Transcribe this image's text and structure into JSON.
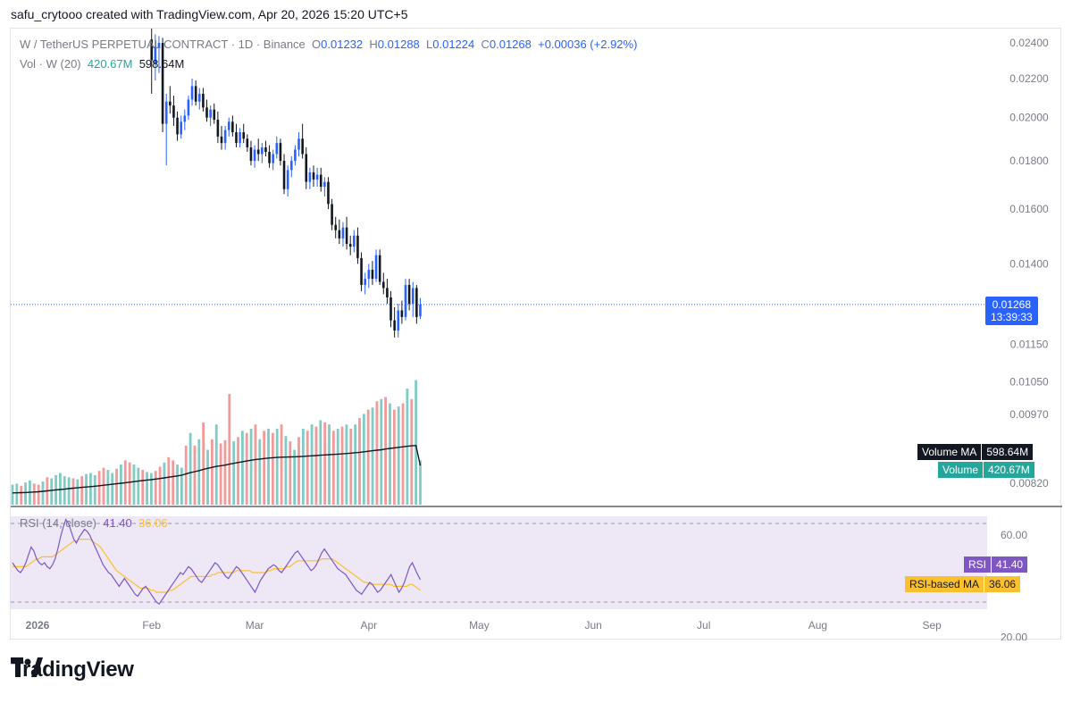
{
  "credit": "safu_crytooo created with TradingView.com, Apr 20, 2026 15:20 UTC+5",
  "legend": {
    "symbol": "W / TetherUS PERPETUAL CONTRACT · 1D · Binance",
    "o_label": "O",
    "o": "0.01232",
    "h_label": "H",
    "h": "0.01288",
    "l_label": "L",
    "l": "0.01224",
    "c_label": "C",
    "c": "0.01268",
    "change": "+0.00036 (+2.92%)",
    "vol_label": "Vol · W (20)",
    "vol_value": "420.67M",
    "vol_ma_value": "598.64M",
    "rsi_label": "RSI (14, close)",
    "rsi_value": "41.40",
    "rsi_ma_value": "36.06"
  },
  "tags": {
    "price": "0.01268",
    "countdown": "13:39:33",
    "volume_ma_label": "Volume MA",
    "volume_ma_value": "598.64M",
    "volume_label": "Volume",
    "volume_value": "420.67M",
    "rsi_label": "RSI",
    "rsi_value": "41.40",
    "rsi_ma_label": "RSI-based MA",
    "rsi_ma_value": "36.06"
  },
  "brand": "TradingView",
  "colors": {
    "up": "#2962ff",
    "down": "#131722",
    "vol_up": "#80cbc4",
    "vol_down": "#f19a9a",
    "rsi": "#7e57c2",
    "rsi_ma": "#fbc02d",
    "rsi_band": "#ede7f6",
    "price_tag": "#2962ff",
    "volume_tag": "#26a69a",
    "axis_text": "#787b86"
  },
  "chart_data": [
    {
      "type": "candlestick",
      "title": "W / TetherUS PERPETUAL CONTRACT · 1D · Binance",
      "x_ticks": [
        "2026",
        "Feb",
        "Mar",
        "Apr",
        "May",
        "Jun",
        "Jul",
        "Aug",
        "Sep"
      ],
      "y_ticks": [
        "0.02400",
        "0.02200",
        "0.02000",
        "0.01800",
        "0.01600",
        "0.01400",
        "0.01150",
        "0.01050",
        "0.00970",
        "0.00820"
      ],
      "y_scale": "log",
      "last_price": 0.01268,
      "candles": [
        {
          "date": "2026-02-01",
          "o": 0.0242,
          "h": 0.0262,
          "l": 0.0212,
          "c": 0.023
        },
        {
          "date": "2026-02-02",
          "o": 0.0228,
          "h": 0.0245,
          "l": 0.0219,
          "c": 0.0238
        },
        {
          "date": "2026-02-03",
          "o": 0.0237,
          "h": 0.0244,
          "l": 0.0223,
          "c": 0.024
        },
        {
          "date": "2026-02-04",
          "o": 0.024,
          "h": 0.0243,
          "l": 0.0193,
          "c": 0.0197
        },
        {
          "date": "2026-02-05",
          "o": 0.0197,
          "h": 0.0212,
          "l": 0.0178,
          "c": 0.0208
        },
        {
          "date": "2026-02-06",
          "o": 0.0208,
          "h": 0.0216,
          "l": 0.0202,
          "c": 0.0206
        },
        {
          "date": "2026-02-07",
          "o": 0.0206,
          "h": 0.0211,
          "l": 0.0196,
          "c": 0.02
        },
        {
          "date": "2026-02-08",
          "o": 0.02,
          "h": 0.0203,
          "l": 0.0189,
          "c": 0.0192
        },
        {
          "date": "2026-02-09",
          "o": 0.0192,
          "h": 0.0201,
          "l": 0.019,
          "c": 0.0198
        },
        {
          "date": "2026-02-10",
          "o": 0.0198,
          "h": 0.0204,
          "l": 0.0194,
          "c": 0.0201
        },
        {
          "date": "2026-02-11",
          "o": 0.0201,
          "h": 0.0211,
          "l": 0.0199,
          "c": 0.0209
        },
        {
          "date": "2026-02-12",
          "o": 0.0209,
          "h": 0.022,
          "l": 0.0206,
          "c": 0.0216
        },
        {
          "date": "2026-02-13",
          "o": 0.0216,
          "h": 0.0219,
          "l": 0.0206,
          "c": 0.0208
        },
        {
          "date": "2026-02-14",
          "o": 0.0208,
          "h": 0.0215,
          "l": 0.0204,
          "c": 0.0212
        },
        {
          "date": "2026-02-15",
          "o": 0.0212,
          "h": 0.0215,
          "l": 0.0203,
          "c": 0.0205
        },
        {
          "date": "2026-02-16",
          "o": 0.0205,
          "h": 0.0209,
          "l": 0.0198,
          "c": 0.02
        },
        {
          "date": "2026-02-17",
          "o": 0.02,
          "h": 0.0206,
          "l": 0.0196,
          "c": 0.0204
        },
        {
          "date": "2026-02-18",
          "o": 0.0204,
          "h": 0.0207,
          "l": 0.0197,
          "c": 0.0199
        },
        {
          "date": "2026-02-19",
          "o": 0.0199,
          "h": 0.0203,
          "l": 0.0188,
          "c": 0.0191
        },
        {
          "date": "2026-02-20",
          "o": 0.0191,
          "h": 0.0196,
          "l": 0.0185,
          "c": 0.0188
        },
        {
          "date": "2026-02-21",
          "o": 0.0188,
          "h": 0.0196,
          "l": 0.0185,
          "c": 0.0194
        },
        {
          "date": "2026-02-22",
          "o": 0.0194,
          "h": 0.02,
          "l": 0.0191,
          "c": 0.0198
        },
        {
          "date": "2026-02-23",
          "o": 0.0198,
          "h": 0.0201,
          "l": 0.0191,
          "c": 0.0193
        },
        {
          "date": "2026-02-24",
          "o": 0.0193,
          "h": 0.0197,
          "l": 0.0186,
          "c": 0.0188
        },
        {
          "date": "2026-02-25",
          "o": 0.0188,
          "h": 0.0195,
          "l": 0.0186,
          "c": 0.0193
        },
        {
          "date": "2026-02-26",
          "o": 0.0193,
          "h": 0.0197,
          "l": 0.0188,
          "c": 0.019
        },
        {
          "date": "2026-02-27",
          "o": 0.019,
          "h": 0.0192,
          "l": 0.0184,
          "c": 0.0186
        },
        {
          "date": "2026-02-28",
          "o": 0.0186,
          "h": 0.0189,
          "l": 0.0178,
          "c": 0.018
        },
        {
          "date": "2026-03-01",
          "o": 0.018,
          "h": 0.0187,
          "l": 0.0177,
          "c": 0.0185
        },
        {
          "date": "2026-03-02",
          "o": 0.0185,
          "h": 0.019,
          "l": 0.018,
          "c": 0.0183
        },
        {
          "date": "2026-03-03",
          "o": 0.0183,
          "h": 0.0188,
          "l": 0.0179,
          "c": 0.0186
        },
        {
          "date": "2026-03-04",
          "o": 0.0186,
          "h": 0.0189,
          "l": 0.0182,
          "c": 0.0184
        },
        {
          "date": "2026-03-05",
          "o": 0.0184,
          "h": 0.0187,
          "l": 0.0177,
          "c": 0.0179
        },
        {
          "date": "2026-03-06",
          "o": 0.0179,
          "h": 0.0185,
          "l": 0.0176,
          "c": 0.0183
        },
        {
          "date": "2026-03-07",
          "o": 0.0183,
          "h": 0.0191,
          "l": 0.0181,
          "c": 0.0188
        },
        {
          "date": "2026-03-08",
          "o": 0.0188,
          "h": 0.019,
          "l": 0.0178,
          "c": 0.018
        },
        {
          "date": "2026-03-09",
          "o": 0.018,
          "h": 0.0183,
          "l": 0.0166,
          "c": 0.0168
        },
        {
          "date": "2026-03-10",
          "o": 0.0168,
          "h": 0.0178,
          "l": 0.0165,
          "c": 0.0176
        },
        {
          "date": "2026-03-11",
          "o": 0.0176,
          "h": 0.0182,
          "l": 0.0173,
          "c": 0.018
        },
        {
          "date": "2026-03-12",
          "o": 0.018,
          "h": 0.0187,
          "l": 0.0178,
          "c": 0.0185
        },
        {
          "date": "2026-03-13",
          "o": 0.0185,
          "h": 0.0193,
          "l": 0.0182,
          "c": 0.019
        },
        {
          "date": "2026-03-14",
          "o": 0.019,
          "h": 0.0197,
          "l": 0.0181,
          "c": 0.0183
        },
        {
          "date": "2026-03-15",
          "o": 0.0183,
          "h": 0.0186,
          "l": 0.0168,
          "c": 0.0171
        },
        {
          "date": "2026-03-16",
          "o": 0.0171,
          "h": 0.0177,
          "l": 0.0168,
          "c": 0.0175
        },
        {
          "date": "2026-03-17",
          "o": 0.0175,
          "h": 0.0178,
          "l": 0.0169,
          "c": 0.0172
        },
        {
          "date": "2026-03-18",
          "o": 0.0172,
          "h": 0.0177,
          "l": 0.0169,
          "c": 0.0174
        },
        {
          "date": "2026-03-19",
          "o": 0.0174,
          "h": 0.0177,
          "l": 0.0167,
          "c": 0.0169
        },
        {
          "date": "2026-03-20",
          "o": 0.0169,
          "h": 0.0173,
          "l": 0.0165,
          "c": 0.0171
        },
        {
          "date": "2026-03-21",
          "o": 0.0171,
          "h": 0.0173,
          "l": 0.016,
          "c": 0.0162
        },
        {
          "date": "2026-03-22",
          "o": 0.0162,
          "h": 0.0164,
          "l": 0.0152,
          "c": 0.0154
        },
        {
          "date": "2026-03-23",
          "o": 0.0154,
          "h": 0.0157,
          "l": 0.0149,
          "c": 0.0152
        },
        {
          "date": "2026-03-24",
          "o": 0.0152,
          "h": 0.0156,
          "l": 0.0147,
          "c": 0.0149
        },
        {
          "date": "2026-03-25",
          "o": 0.0149,
          "h": 0.0155,
          "l": 0.0146,
          "c": 0.0153
        },
        {
          "date": "2026-03-26",
          "o": 0.0153,
          "h": 0.0157,
          "l": 0.0145,
          "c": 0.0147
        },
        {
          "date": "2026-03-27",
          "o": 0.0147,
          "h": 0.015,
          "l": 0.0143,
          "c": 0.0146
        },
        {
          "date": "2026-03-28",
          "o": 0.0146,
          "h": 0.0152,
          "l": 0.0144,
          "c": 0.015
        },
        {
          "date": "2026-03-29",
          "o": 0.015,
          "h": 0.0153,
          "l": 0.014,
          "c": 0.0142
        },
        {
          "date": "2026-03-30",
          "o": 0.0142,
          "h": 0.0144,
          "l": 0.0131,
          "c": 0.0133
        },
        {
          "date": "2026-03-31",
          "o": 0.0133,
          "h": 0.0137,
          "l": 0.013,
          "c": 0.0135
        },
        {
          "date": "2026-04-01",
          "o": 0.0135,
          "h": 0.014,
          "l": 0.0132,
          "c": 0.0138
        },
        {
          "date": "2026-04-02",
          "o": 0.0138,
          "h": 0.0141,
          "l": 0.0133,
          "c": 0.0135
        },
        {
          "date": "2026-04-03",
          "o": 0.0135,
          "h": 0.0145,
          "l": 0.0134,
          "c": 0.0143
        },
        {
          "date": "2026-04-04",
          "o": 0.0143,
          "h": 0.0145,
          "l": 0.0133,
          "c": 0.0134
        },
        {
          "date": "2026-04-05",
          "o": 0.0134,
          "h": 0.0137,
          "l": 0.013,
          "c": 0.0132
        },
        {
          "date": "2026-04-06",
          "o": 0.0132,
          "h": 0.0135,
          "l": 0.0127,
          "c": 0.0129
        },
        {
          "date": "2026-04-07",
          "o": 0.0129,
          "h": 0.0131,
          "l": 0.012,
          "c": 0.0122
        },
        {
          "date": "2026-04-08",
          "o": 0.0122,
          "h": 0.0126,
          "l": 0.0117,
          "c": 0.0119
        },
        {
          "date": "2026-04-09",
          "o": 0.0119,
          "h": 0.0127,
          "l": 0.0117,
          "c": 0.0125
        },
        {
          "date": "2026-04-10",
          "o": 0.0125,
          "h": 0.0128,
          "l": 0.0121,
          "c": 0.0123
        },
        {
          "date": "2026-04-11",
          "o": 0.0123,
          "h": 0.0135,
          "l": 0.0122,
          "c": 0.0133
        },
        {
          "date": "2026-04-12",
          "o": 0.0133,
          "h": 0.0135,
          "l": 0.0125,
          "c": 0.0127
        },
        {
          "date": "2026-04-13",
          "o": 0.0127,
          "h": 0.0134,
          "l": 0.0123,
          "c": 0.0132
        },
        {
          "date": "2026-04-14",
          "o": 0.0132,
          "h": 0.0133,
          "l": 0.0121,
          "c": 0.0123
        },
        {
          "date": "2026-04-15",
          "o": 0.01232,
          "h": 0.01288,
          "l": 0.01224,
          "c": 0.01268
        }
      ]
    },
    {
      "type": "bar",
      "title": "Vol · W (20)",
      "values_millions": [
        190,
        200,
        180,
        210,
        230,
        200,
        190,
        220,
        260,
        250,
        280,
        300,
        270,
        260,
        250,
        240,
        270,
        290,
        300,
        280,
        320,
        350,
        330,
        300,
        340,
        380,
        420,
        400,
        380,
        350,
        330,
        310,
        300,
        320,
        360,
        400,
        450,
        420,
        380,
        350,
        560,
        680,
        560,
        620,
        780,
        520,
        620,
        760,
        580,
        610,
        1050,
        600,
        640,
        700,
        680,
        720,
        760,
        620,
        700,
        720,
        680,
        720,
        760,
        650,
        600,
        520,
        640,
        720,
        700,
        760,
        740,
        800,
        780,
        760,
        700,
        720,
        740,
        760,
        720,
        760,
        820,
        860,
        900,
        920,
        980,
        1000,
        1020,
        960,
        900,
        930,
        960,
        1100,
        1000,
        1180,
        420.67
      ],
      "ma20_millions": [
        180,
        182,
        184,
        186,
        190,
        194,
        198,
        205,
        212,
        220,
        226,
        232,
        238,
        245,
        252,
        258,
        265,
        270,
        276,
        282,
        290,
        298,
        305,
        312,
        320,
        328,
        336,
        344,
        352,
        360,
        368,
        376,
        384,
        392,
        400,
        410,
        420,
        430,
        440,
        450,
        470,
        490,
        505,
        520,
        540,
        555,
        570,
        585,
        595,
        605,
        620,
        632,
        644,
        656,
        668,
        680,
        690,
        698,
        706,
        712,
        718,
        722,
        726,
        728,
        730,
        732,
        734,
        738,
        742,
        746,
        750,
        756,
        760,
        764,
        768,
        772,
        776,
        782,
        788,
        794,
        800,
        808,
        816,
        824,
        832,
        840,
        850,
        860,
        868,
        876,
        884,
        892,
        900,
        905,
        598.64
      ],
      "down_bar_indices": [
        2,
        5,
        6,
        8,
        14,
        16,
        20,
        21,
        24,
        26,
        27,
        30,
        33,
        34,
        36,
        37,
        40,
        42,
        44,
        46,
        48,
        49,
        50,
        52,
        54,
        56,
        58,
        60,
        62,
        64,
        66,
        68,
        70,
        72,
        74,
        76,
        78,
        80,
        82,
        84,
        86,
        88,
        90,
        92
      ]
    },
    {
      "type": "line",
      "title": "RSI (14, close)",
      "y_ticks": [
        "60.00",
        "20.00"
      ],
      "band": [
        30,
        70
      ],
      "rsi": [
        50,
        48,
        46,
        45,
        47,
        50,
        54,
        58,
        56,
        52,
        50,
        49,
        50,
        48,
        47,
        49,
        52,
        57,
        63,
        68,
        72,
        70,
        66,
        62,
        60,
        63,
        65,
        67,
        66,
        64,
        61,
        58,
        55,
        52,
        49,
        47,
        45,
        44,
        42,
        40,
        38,
        40,
        42,
        40,
        38,
        36,
        34,
        33,
        35,
        37,
        38,
        36,
        34,
        32,
        30,
        29,
        31,
        33,
        35,
        37,
        39,
        41,
        43,
        45,
        44,
        46,
        48,
        47,
        45,
        43,
        41,
        40,
        42,
        44,
        46,
        48,
        50,
        49,
        47,
        45,
        43,
        42,
        44,
        46,
        48,
        47,
        45,
        43,
        41,
        39,
        37,
        35,
        38,
        41,
        43,
        45,
        47,
        48,
        49,
        48,
        46,
        45,
        47,
        49,
        51,
        53,
        55,
        56,
        54,
        52,
        50,
        48,
        46,
        47,
        49,
        52,
        55,
        57,
        55,
        53,
        51,
        49,
        47,
        46,
        45,
        44,
        42,
        40,
        38,
        36,
        35,
        34,
        36,
        38,
        40,
        39,
        37,
        35,
        36,
        38,
        40,
        42,
        44,
        41,
        38,
        35,
        37,
        40,
        44,
        48,
        50,
        47,
        44,
        41.4
      ],
      "rsi_ma": [
        48,
        48,
        48,
        48,
        48,
        48,
        49,
        50,
        51,
        52,
        52,
        53,
        53,
        53,
        53,
        53,
        54,
        55,
        56,
        57,
        58,
        59,
        60,
        61,
        61,
        62,
        62,
        62,
        62,
        62,
        61,
        60,
        59,
        58,
        56,
        54,
        52,
        50,
        48,
        46,
        45,
        44,
        43,
        42,
        41,
        40,
        39,
        38,
        37,
        37,
        37,
        37,
        36,
        36,
        35,
        35,
        35,
        35,
        35,
        36,
        36,
        37,
        38,
        39,
        40,
        41,
        42,
        43,
        43,
        43,
        43,
        43,
        43,
        43,
        43,
        44,
        44,
        45,
        45,
        45,
        45,
        45,
        45,
        45,
        46,
        46,
        46,
        46,
        46,
        46,
        45,
        45,
        45,
        45,
        45,
        45,
        46,
        46,
        47,
        47,
        47,
        47,
        47,
        48,
        48,
        49,
        50,
        51,
        51,
        51,
        51,
        51,
        51,
        51,
        51,
        51,
        52,
        52,
        52,
        52,
        52,
        51,
        50,
        49,
        48,
        47,
        46,
        45,
        44,
        43,
        42,
        41,
        40,
        40,
        39,
        39,
        39,
        39,
        39,
        39,
        39,
        39,
        39,
        38,
        38,
        38,
        38,
        38,
        38,
        39,
        39,
        38,
        37,
        36.06
      ],
      "rsi_last": 41.4,
      "rsi_ma_last": 36.06
    }
  ]
}
